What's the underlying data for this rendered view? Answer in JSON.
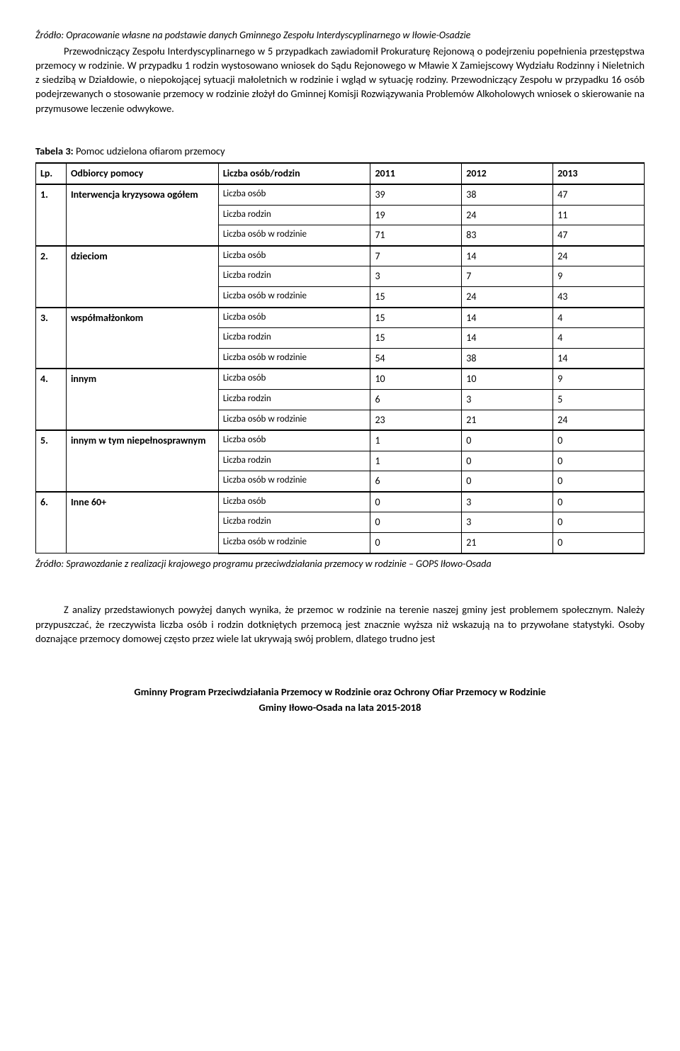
{
  "source_note": "Źródło: Opracowanie własne na podstawie danych Gminnego Zespołu Interdyscyplinarnego w Iłowie-Osadzie",
  "para1": "Przewodniczący Zespołu Interdyscyplinarnego w 5 przypadkach zawiadomił Prokuraturę Rejonową o podejrzeniu popełnienia przestępstwa przemocy w rodzinie. W przypadku  1 rodzin wystosowano wniosek do Sądu Rejonowego w Mławie X Zamiejscowy Wydziału Rodzinny i Nieletnich z siedzibą w Działdowie, o niepokojącej sytuacji małoletnich w rodzinie i wgląd w sytuację rodziny. Przewodniczący Zespołu w  przypadku 16 osób podejrzewanych o stosowanie przemocy w rodzinie złożył do Gminnej Komisji Rozwiązywania Problemów Alkoholowych wniosek o skierowanie na przymusowe leczenie odwykowe.",
  "table_title_label": "Tabela 3:",
  "table_title_text": " Pomoc udzielona ofiarom przemocy",
  "headers": {
    "lp": "Lp.",
    "odbiorcy": "Odbiorcy pomocy",
    "liczba": "Liczba osób/rodzin",
    "y2011": "2011",
    "y2012": "2012",
    "y2013": "2013"
  },
  "row_labels": {
    "osob": "Liczba osób",
    "rodzin": "Liczba rodzin",
    "osob_w_rodzinie": "Liczba osób w rodzinie"
  },
  "groups": [
    {
      "lp": "1.",
      "name": "Interwencja kryzysowa ogółem",
      "osob": [
        "39",
        "38",
        "47"
      ],
      "rodzin": [
        "19",
        "24",
        "11"
      ],
      "osob_w_rodzinie": [
        "71",
        "83",
        "47"
      ]
    },
    {
      "lp": "2.",
      "name": "dzieciom",
      "osob": [
        "7",
        "14",
        "24"
      ],
      "rodzin": [
        "3",
        "7",
        "9"
      ],
      "osob_w_rodzinie": [
        "15",
        "24",
        "43"
      ]
    },
    {
      "lp": "3.",
      "name": "współmałżonkom",
      "osob": [
        "15",
        "14",
        "4"
      ],
      "rodzin": [
        "15",
        "14",
        "4"
      ],
      "osob_w_rodzinie": [
        "54",
        "38",
        "14"
      ]
    },
    {
      "lp": "4.",
      "name": "innym",
      "osob": [
        "10",
        "10",
        "9"
      ],
      "rodzin": [
        "6",
        "3",
        "5"
      ],
      "osob_w_rodzinie": [
        "23",
        "21",
        "24"
      ]
    },
    {
      "lp": "5.",
      "name": "innym w tym niepełnosprawnym",
      "osob": [
        "1",
        "0",
        "0"
      ],
      "rodzin": [
        "1",
        "0",
        "0"
      ],
      "osob_w_rodzinie": [
        "6",
        "0",
        "0"
      ]
    },
    {
      "lp": "6.",
      "name": "Inne 60+",
      "osob": [
        "0",
        "3",
        "0"
      ],
      "rodzin": [
        "0",
        "3",
        "0"
      ],
      "osob_w_rodzinie": [
        "0",
        "21",
        "0"
      ]
    }
  ],
  "footer_note": "Źródło: Sprawozdanie z realizacji krajowego programu przeciwdziałania przemocy w rodzinie – GOPS Iłowo-Osada",
  "para2": "Z analizy przedstawionych powyżej danych wynika, że przemoc w rodzinie na terenie naszej gminy jest problemem społecznym. Należy przypuszczać, że rzeczywista liczba osób i rodzin dotkniętych przemocą jest znacznie wyższa niż wskazują na to przywołane statystyki. Osoby doznające przemocy domowej często przez wiele lat ukrywają swój problem, dlatego trudno jest",
  "page_footer_line1": "Gminny Program Przeciwdziałania Przemocy w Rodzinie oraz Ochrony Ofiar Przemocy w Rodzinie",
  "page_footer_line2": "Gminy Iłowo-Osada na lata 2015-2018"
}
